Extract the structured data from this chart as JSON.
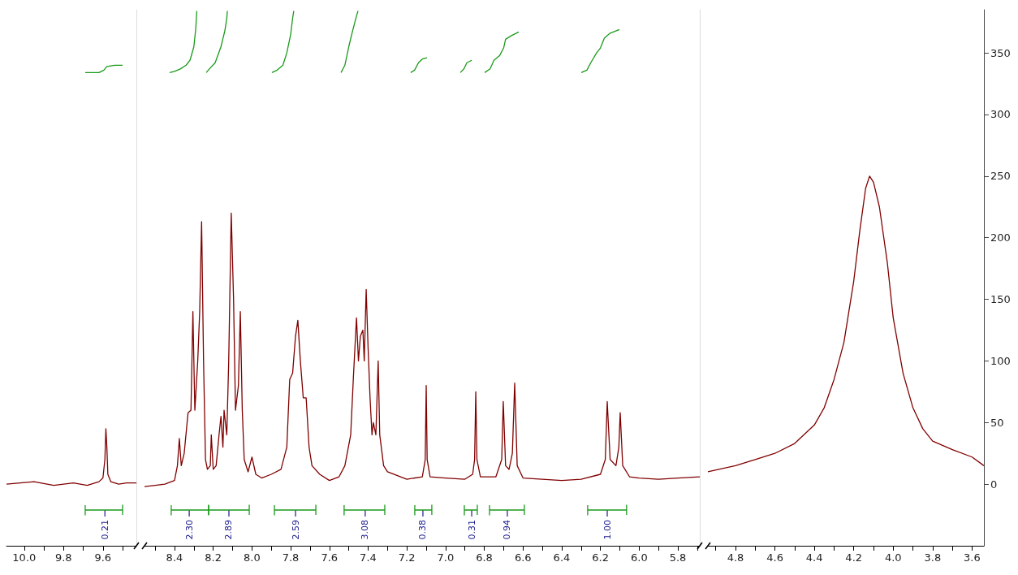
{
  "chart_data": [
    {
      "type": "line",
      "xlim": [
        10.09,
        9.43
      ],
      "xticks": [
        {
          "value": 10,
          "label": "10.0"
        },
        {
          "value": 9.9,
          "label": null
        },
        9.8,
        {
          "value": 9.7,
          "label": null
        },
        9.6,
        {
          "value": 9.5,
          "label": null
        }
      ],
      "ylim": [
        -50,
        385
      ],
      "yticks": [
        0,
        50,
        100,
        150,
        200,
        250,
        300,
        350
      ],
      "tick_labels": "x",
      "grid": false,
      "marker": "none",
      "series": [
        {
          "color": "#800000",
          "x": [
            10.09,
            9.95,
            9.85,
            9.75,
            9.68,
            9.62,
            9.6,
            9.59,
            9.585,
            9.58,
            9.575,
            9.56,
            9.52,
            9.48,
            9.43
          ],
          "values": [
            0,
            2,
            -1,
            1,
            -1,
            2,
            5,
            20,
            45,
            30,
            8,
            2,
            0,
            1,
            1
          ]
        },
        {
          "color": "#1a9a1a",
          "x": [
            9.69,
            9.62,
            9.595,
            9.58,
            9.54,
            9.5
          ],
          "values": [
            334,
            334,
            336,
            339,
            340,
            340
          ]
        },
        {
          "color": "#1a9a1a",
          "x": [
            9.69,
            9.69,
            9.69,
            9.5,
            9.5,
            9.5
          ],
          "values": [
            -17,
            -25,
            -21,
            -21,
            -17,
            -25
          ]
        }
      ],
      "annotations": [
        {
          "text": "0.21",
          "x": 9.59,
          "y": -21
        }
      ]
    },
    {
      "type": "line",
      "xlim": [
        8.555,
        5.687
      ],
      "xticks": [
        {
          "value": 8.5,
          "label": null
        },
        8.4,
        {
          "value": 8.3,
          "label": null
        },
        8.2,
        {
          "value": 8.1,
          "label": null
        },
        {
          "value": 8,
          "label": "8.0"
        },
        {
          "value": 7.9,
          "label": null
        },
        7.8,
        {
          "value": 7.7,
          "label": null
        },
        7.6,
        {
          "value": 7.5,
          "label": null
        },
        7.4,
        {
          "value": 7.3,
          "label": null
        },
        7.2,
        {
          "value": 7.1,
          "label": null
        },
        {
          "value": 7,
          "label": "7.0"
        },
        {
          "value": 6.9,
          "label": null
        },
        6.8,
        {
          "value": 6.7,
          "label": null
        },
        6.6,
        {
          "value": 6.5,
          "label": null
        },
        6.4,
        {
          "value": 6.3,
          "label": null
        },
        6.2,
        {
          "value": 6.1,
          "label": null
        },
        {
          "value": 6,
          "label": "6.0"
        },
        {
          "value": 5.9,
          "label": null
        },
        5.8,
        {
          "value": 5.7,
          "label": null
        }
      ],
      "ylim": [
        -50,
        385
      ],
      "yticks": [
        0,
        50,
        100,
        150,
        200,
        250,
        300,
        350
      ],
      "tick_labels": "x",
      "grid": false,
      "marker": "none",
      "series": [
        {
          "color": "#800000",
          "x": [
            8.555,
            8.5,
            8.45,
            8.4,
            8.385,
            8.375,
            8.365,
            8.35,
            8.33,
            8.315,
            8.305,
            8.295,
            8.28,
            8.27,
            8.26,
            8.25,
            8.24,
            8.23,
            8.215,
            8.21,
            8.2,
            8.185,
            8.17,
            8.16,
            8.15,
            8.144,
            8.13,
            8.12,
            8.107,
            8.095,
            8.085,
            8.07,
            8.06,
            8.05,
            8.04,
            8.02,
            8.0,
            7.98,
            7.95,
            7.9,
            7.85,
            7.82,
            7.805,
            7.79,
            7.775,
            7.763,
            7.75,
            7.735,
            7.72,
            7.705,
            7.69,
            7.65,
            7.6,
            7.55,
            7.52,
            7.49,
            7.475,
            7.46,
            7.45,
            7.44,
            7.427,
            7.42,
            7.41,
            7.4,
            7.39,
            7.38,
            7.373,
            7.36,
            7.348,
            7.34,
            7.32,
            7.3,
            7.2,
            7.12,
            7.105,
            7.1,
            7.095,
            7.08,
            7.0,
            6.9,
            6.86,
            6.85,
            6.844,
            6.838,
            6.82,
            6.74,
            6.71,
            6.702,
            6.69,
            6.672,
            6.655,
            6.643,
            6.63,
            6.6,
            6.5,
            6.4,
            6.3,
            6.2,
            6.175,
            6.165,
            6.15,
            6.12,
            6.105,
            6.098,
            6.085,
            6.05,
            6.0,
            5.9,
            5.8,
            5.687
          ],
          "values": [
            -2,
            -1,
            0,
            3,
            15,
            37,
            15,
            25,
            58,
            60,
            140,
            60,
            100,
            140,
            213,
            100,
            20,
            12,
            15,
            40,
            12,
            15,
            40,
            55,
            30,
            60,
            40,
            100,
            220,
            150,
            60,
            80,
            140,
            60,
            20,
            10,
            22,
            8,
            5,
            8,
            12,
            30,
            85,
            90,
            120,
            133,
            100,
            70,
            70,
            30,
            15,
            8,
            3,
            6,
            15,
            40,
            90,
            135,
            100,
            120,
            125,
            100,
            158,
            110,
            70,
            40,
            50,
            40,
            100,
            40,
            15,
            10,
            4,
            6,
            20,
            80,
            20,
            6,
            5,
            4,
            8,
            20,
            75,
            20,
            6,
            6,
            20,
            67,
            15,
            12,
            25,
            82,
            15,
            5,
            4,
            3,
            4,
            8,
            20,
            67,
            20,
            15,
            30,
            58,
            15,
            6,
            5,
            4,
            5,
            6
          ]
        },
        {
          "color": "#1a9a1a",
          "x": [
            8.425,
            8.4,
            8.37,
            8.34,
            8.32,
            8.3,
            8.29,
            8.285
          ],
          "values": [
            334,
            335,
            337,
            340,
            344,
            355,
            370,
            384
          ]
        },
        {
          "color": "#1a9a1a",
          "x": [
            8.236,
            8.22,
            8.19,
            8.16,
            8.14,
            8.13,
            8.127
          ],
          "values": [
            334,
            337,
            342,
            355,
            368,
            378,
            384
          ]
        },
        {
          "color": "#1a9a1a",
          "x": [
            7.897,
            7.87,
            7.84,
            7.82,
            7.8,
            7.79,
            7.784
          ],
          "values": [
            334,
            336,
            340,
            350,
            365,
            378,
            384
          ]
        },
        {
          "color": "#1a9a1a",
          "x": [
            7.54,
            7.52,
            7.5,
            7.48,
            7.46,
            7.452
          ],
          "values": [
            334,
            340,
            355,
            368,
            380,
            384
          ]
        },
        {
          "color": "#1a9a1a",
          "x": [
            7.18,
            7.16,
            7.14,
            7.12,
            7.096
          ],
          "values": [
            334,
            336,
            342,
            345,
            346
          ]
        },
        {
          "color": "#1a9a1a",
          "x": [
            6.924,
            6.905,
            6.89,
            6.865
          ],
          "values": [
            334,
            337,
            342,
            344
          ]
        },
        {
          "color": "#1a9a1a",
          "x": [
            6.798,
            6.77,
            6.75,
            6.72,
            6.7,
            6.69,
            6.66,
            6.622
          ],
          "values": [
            334,
            337,
            344,
            348,
            354,
            361,
            364,
            367
          ]
        },
        {
          "color": "#1a9a1a",
          "x": [
            6.299,
            6.27,
            6.25,
            6.22,
            6.2,
            6.18,
            6.15,
            6.102
          ],
          "values": [
            334,
            336,
            342,
            350,
            354,
            362,
            366,
            369
          ]
        },
        {
          "color": "#1a9a1a",
          "x": [
            8.417,
            8.417,
            8.417,
            8.224,
            8.224,
            8.224
          ],
          "values": [
            -17,
            -25,
            -21,
            -21,
            -17,
            -25
          ]
        },
        {
          "color": "#1a9a1a",
          "x": [
            8.224,
            8.224,
            8.224,
            8.014,
            8.014,
            8.014
          ],
          "values": [
            -17,
            -25,
            -21,
            -21,
            -17,
            -25
          ]
        },
        {
          "color": "#1a9a1a",
          "x": [
            7.884,
            7.884,
            7.884,
            7.67,
            7.67,
            7.67
          ],
          "values": [
            -17,
            -25,
            -21,
            -21,
            -17,
            -25
          ]
        },
        {
          "color": "#1a9a1a",
          "x": [
            7.524,
            7.524,
            7.524,
            7.314,
            7.314,
            7.314
          ],
          "values": [
            -17,
            -25,
            -21,
            -21,
            -17,
            -25
          ]
        },
        {
          "color": "#1a9a1a",
          "x": [
            7.159,
            7.159,
            7.159,
            7.071,
            7.071,
            7.071
          ],
          "values": [
            -17,
            -25,
            -21,
            -21,
            -17,
            -25
          ]
        },
        {
          "color": "#1a9a1a",
          "x": [
            6.903,
            6.903,
            6.903,
            6.836,
            6.836,
            6.836
          ],
          "values": [
            -17,
            -25,
            -21,
            -21,
            -17,
            -25
          ]
        },
        {
          "color": "#1a9a1a",
          "x": [
            6.773,
            6.773,
            6.773,
            6.593,
            6.593,
            6.593
          ],
          "values": [
            -17,
            -25,
            -21,
            -21,
            -17,
            -25
          ]
        },
        {
          "color": "#1a9a1a",
          "x": [
            6.266,
            6.266,
            6.266,
            6.065,
            6.065,
            6.065
          ],
          "values": [
            -17,
            -25,
            -21,
            -21,
            -17,
            -25
          ]
        }
      ],
      "annotations": [
        {
          "text": "2.30",
          "x": 8.324,
          "y": -21
        },
        {
          "text": "2.89",
          "x": 8.119,
          "y": -21
        },
        {
          "text": "2.59",
          "x": 7.775,
          "y": -21
        },
        {
          "text": "3.08",
          "x": 7.415,
          "y": -21
        },
        {
          "text": "0.38",
          "x": 7.117,
          "y": -21
        },
        {
          "text": "0.31",
          "x": 6.865,
          "y": -21
        },
        {
          "text": "0.94",
          "x": 6.681,
          "y": -21
        },
        {
          "text": "1.00",
          "x": 6.165,
          "y": -21
        }
      ]
    },
    {
      "type": "line",
      "xlim": [
        4.94,
        3.54
      ],
      "xticks": [
        {
          "value": 4.9,
          "label": null
        },
        4.8,
        {
          "value": 4.7,
          "label": null
        },
        4.6,
        {
          "value": 4.5,
          "label": null
        },
        4.4,
        {
          "value": 4.3,
          "label": null
        },
        4.2,
        {
          "value": 4.1,
          "label": null
        },
        {
          "value": 4,
          "label": "4.0"
        },
        {
          "value": 3.9,
          "label": null
        },
        3.8,
        {
          "value": 3.7,
          "label": null
        },
        3.6
      ],
      "ylim": [
        -50,
        385
      ],
      "yticks": [
        0,
        50,
        100,
        150,
        200,
        250,
        300,
        350
      ],
      "grid": false,
      "marker": "none",
      "series": [
        {
          "color": "#800000",
          "x": [
            4.94,
            4.8,
            4.7,
            4.6,
            4.5,
            4.4,
            4.35,
            4.3,
            4.25,
            4.2,
            4.17,
            4.14,
            4.12,
            4.1,
            4.07,
            4.03,
            4.0,
            3.95,
            3.9,
            3.85,
            3.8,
            3.7,
            3.6,
            3.54
          ],
          "values": [
            10,
            15,
            20,
            25,
            33,
            48,
            62,
            85,
            115,
            165,
            205,
            240,
            250,
            245,
            225,
            180,
            135,
            90,
            62,
            45,
            35,
            28,
            22,
            15
          ]
        }
      ]
    }
  ]
}
